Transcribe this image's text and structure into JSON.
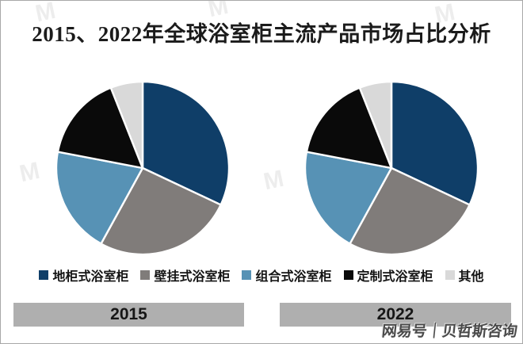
{
  "title": "2015、2022年全球浴室柜主流产品市场占比分析",
  "legend": {
    "items": [
      {
        "label": "地柜式浴室柜",
        "color": "#0F3E68"
      },
      {
        "label": "壁挂式浴室柜",
        "color": "#807C7A"
      },
      {
        "label": "组合式浴室柜",
        "color": "#5792B5"
      },
      {
        "label": "定制式浴室柜",
        "color": "#0A0A0A"
      },
      {
        "label": "其他",
        "color": "#D9D9D9"
      }
    ]
  },
  "chart_data": [
    {
      "type": "pie",
      "title": "2015",
      "labels": [
        "地柜式浴室柜",
        "壁挂式浴室柜",
        "组合式浴室柜",
        "定制式浴室柜",
        "其他"
      ],
      "values_percent": [
        32,
        26,
        20,
        16,
        6
      ],
      "slice_colors": [
        "#0F3E68",
        "#807C7A",
        "#5792B5",
        "#0A0A0A",
        "#D9D9D9"
      ],
      "start_angle_deg": 0,
      "direction": "clockwise",
      "slice_gap_stroke": "#FFFFFF"
    },
    {
      "type": "pie",
      "title": "2022",
      "labels": [
        "地柜式浴室柜",
        "壁挂式浴室柜",
        "组合式浴室柜",
        "定制式浴室柜",
        "其他"
      ],
      "values_percent": [
        32,
        26,
        20,
        16,
        6
      ],
      "slice_colors": [
        "#0F3E68",
        "#807C7A",
        "#5792B5",
        "#0A0A0A",
        "#D9D9D9"
      ],
      "start_angle_deg": 0,
      "direction": "clockwise",
      "slice_gap_stroke": "#FFFFFF"
    }
  ],
  "category_bars": [
    {
      "label": "2015"
    },
    {
      "label": "2022"
    }
  ],
  "watermark": {
    "site_credit": "网易号｜贝哲斯咨询",
    "background_glyph": "M"
  },
  "colors": {
    "background": "#FFFFFF",
    "border": "#A8A8A8",
    "bar_fill": "#AFAFAF",
    "title_text": "#1B1B1B"
  }
}
